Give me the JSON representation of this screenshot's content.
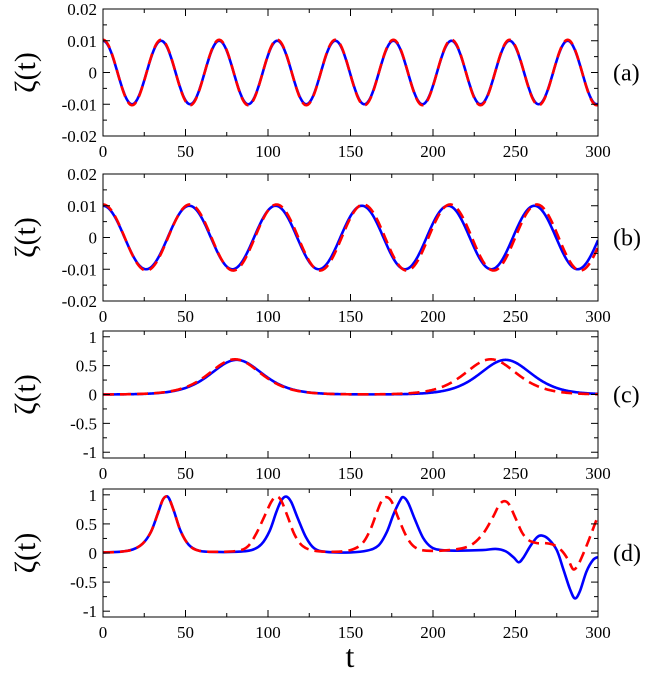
{
  "figure": {
    "xlabel": "t",
    "colors": {
      "series_solid": "#0000ff",
      "series_dashed": "#ff0000",
      "axes": "#000000"
    }
  },
  "chart_data": [
    {
      "type": "line",
      "panel_label": "(a)",
      "ylabel": "ζ(t)",
      "xlim": [
        0,
        300
      ],
      "ylim": [
        -0.02,
        0.02
      ],
      "xticks": [
        0,
        50,
        100,
        150,
        200,
        250,
        300
      ],
      "yticks": [
        -0.02,
        -0.01,
        0,
        0.01,
        0.02
      ],
      "ytick_labels": [
        "-0.02",
        "-0.01",
        "0",
        "0.01",
        "0.02"
      ],
      "grid": false,
      "series": [
        {
          "style": "solid",
          "color": "#0000ff",
          "kind": "cosine",
          "amplitude": 0.01,
          "period": 35.2,
          "phase_deg": 0
        },
        {
          "style": "dashed",
          "color": "#ff0000",
          "kind": "cosine",
          "amplitude": 0.0103,
          "period": 35.2,
          "phase_deg": 0
        }
      ]
    },
    {
      "type": "line",
      "panel_label": "(b)",
      "ylabel": "ζ(t)",
      "xlim": [
        0,
        300
      ],
      "ylim": [
        -0.02,
        0.02
      ],
      "xticks": [
        0,
        50,
        100,
        150,
        200,
        250,
        300
      ],
      "yticks": [
        -0.02,
        -0.01,
        0,
        0.01,
        0.02
      ],
      "ytick_labels": [
        "-0.02",
        "-0.01",
        "0",
        "0.01",
        "0.02"
      ],
      "grid": false,
      "series": [
        {
          "style": "solid",
          "color": "#0000ff",
          "kind": "cosine",
          "amplitude": 0.01,
          "period": 52.3,
          "phase_deg": 0
        },
        {
          "style": "dashed",
          "color": "#ff0000",
          "kind": "cosine",
          "amplitude": 0.0104,
          "period": 52.6,
          "phase_deg": 0
        }
      ]
    },
    {
      "type": "line",
      "panel_label": "(c)",
      "ylabel": "ζ(t)",
      "xlim": [
        0,
        300
      ],
      "ylim": [
        -1.1,
        1.1
      ],
      "xticks": [
        0,
        50,
        100,
        150,
        200,
        250,
        300
      ],
      "yticks": [
        -1,
        -0.5,
        0,
        0.5,
        1
      ],
      "ytick_labels": [
        "-1",
        "-0.5",
        "0",
        "0.5",
        "1"
      ],
      "grid": false,
      "series": [
        {
          "style": "solid",
          "color": "#0000ff",
          "kind": "pulses",
          "pulses": [
            {
              "center": 81,
              "height": 0.6,
              "width": 21
            },
            {
              "center": 244,
              "height": 0.6,
              "width": 21
            }
          ],
          "points": []
        },
        {
          "style": "dashed",
          "color": "#ff0000",
          "kind": "pulses",
          "pulses": [
            {
              "center": 80,
              "height": 0.61,
              "width": 21
            },
            {
              "center": 235,
              "height": 0.61,
              "width": 21
            }
          ],
          "points": []
        }
      ]
    },
    {
      "type": "line",
      "panel_label": "(d)",
      "ylabel": "ζ(t)",
      "xlim": [
        0,
        300
      ],
      "ylim": [
        -1.1,
        1.1
      ],
      "xticks": [
        0,
        50,
        100,
        150,
        200,
        250,
        300
      ],
      "yticks": [
        -1,
        -0.5,
        0,
        0.5,
        1
      ],
      "ytick_labels": [
        "-1",
        "-0.5",
        "0",
        "0.5",
        "1"
      ],
      "grid": false,
      "series": [
        {
          "style": "solid",
          "color": "#0000ff",
          "kind": "points",
          "points": [
            [
              0,
              0.01
            ],
            [
              10,
              0.02
            ],
            [
              18,
              0.06
            ],
            [
              24,
              0.16
            ],
            [
              29,
              0.36
            ],
            [
              33,
              0.66
            ],
            [
              36,
              0.9
            ],
            [
              38,
              0.97
            ],
            [
              40,
              0.94
            ],
            [
              43,
              0.72
            ],
            [
              47,
              0.38
            ],
            [
              52,
              0.14
            ],
            [
              58,
              0.04
            ],
            [
              65,
              0.02
            ],
            [
              80,
              0.02
            ],
            [
              90,
              0.05
            ],
            [
              96,
              0.15
            ],
            [
              101,
              0.38
            ],
            [
              105,
              0.7
            ],
            [
              108,
              0.9
            ],
            [
              111,
              0.97
            ],
            [
              114,
              0.88
            ],
            [
              118,
              0.6
            ],
            [
              123,
              0.27
            ],
            [
              128,
              0.08
            ],
            [
              135,
              0.02
            ],
            [
              150,
              0.01
            ],
            [
              160,
              0.04
            ],
            [
              167,
              0.13
            ],
            [
              172,
              0.36
            ],
            [
              176,
              0.66
            ],
            [
              180,
              0.9
            ],
            [
              182,
              0.96
            ],
            [
              185,
              0.86
            ],
            [
              189,
              0.58
            ],
            [
              194,
              0.26
            ],
            [
              199,
              0.1
            ],
            [
              205,
              0.05
            ],
            [
              215,
              0.04
            ],
            [
              230,
              0.05
            ],
            [
              238,
              0.07
            ],
            [
              244,
              0.03
            ],
            [
              249,
              -0.08
            ],
            [
              252,
              -0.16
            ],
            [
              255,
              -0.07
            ],
            [
              259,
              0.12
            ],
            [
              263,
              0.27
            ],
            [
              266,
              0.3
            ],
            [
              270,
              0.24
            ],
            [
              275,
              0.05
            ],
            [
              279,
              -0.28
            ],
            [
              283,
              -0.62
            ],
            [
              286,
              -0.78
            ],
            [
              289,
              -0.66
            ],
            [
              293,
              -0.32
            ],
            [
              297,
              -0.12
            ],
            [
              300,
              -0.07
            ]
          ]
        },
        {
          "style": "dashed",
          "color": "#ff0000",
          "kind": "points",
          "points": [
            [
              0,
              0.01
            ],
            [
              10,
              0.02
            ],
            [
              18,
              0.06
            ],
            [
              24,
              0.16
            ],
            [
              29,
              0.36
            ],
            [
              33,
              0.66
            ],
            [
              36,
              0.9
            ],
            [
              38,
              0.97
            ],
            [
              40,
              0.94
            ],
            [
              43,
              0.72
            ],
            [
              47,
              0.38
            ],
            [
              52,
              0.14
            ],
            [
              58,
              0.04
            ],
            [
              70,
              0.02
            ],
            [
              82,
              0.04
            ],
            [
              88,
              0.12
            ],
            [
              93,
              0.34
            ],
            [
              98,
              0.64
            ],
            [
              102,
              0.88
            ],
            [
              105,
              0.97
            ],
            [
              108,
              0.9
            ],
            [
              112,
              0.62
            ],
            [
              116,
              0.32
            ],
            [
              121,
              0.12
            ],
            [
              128,
              0.04
            ],
            [
              140,
              0.02
            ],
            [
              150,
              0.05
            ],
            [
              157,
              0.16
            ],
            [
              162,
              0.4
            ],
            [
              166,
              0.7
            ],
            [
              169,
              0.9
            ],
            [
              172,
              0.96
            ],
            [
              175,
              0.88
            ],
            [
              179,
              0.6
            ],
            [
              184,
              0.28
            ],
            [
              189,
              0.1
            ],
            [
              196,
              0.04
            ],
            [
              210,
              0.05
            ],
            [
              222,
              0.12
            ],
            [
              230,
              0.32
            ],
            [
              236,
              0.6
            ],
            [
              240,
              0.82
            ],
            [
              243,
              0.89
            ],
            [
              246,
              0.84
            ],
            [
              250,
              0.6
            ],
            [
              254,
              0.35
            ],
            [
              258,
              0.22
            ],
            [
              263,
              0.17
            ],
            [
              268,
              0.17
            ],
            [
              273,
              0.14
            ],
            [
              278,
              0.04
            ],
            [
              282,
              -0.12
            ],
            [
              285,
              -0.28
            ],
            [
              288,
              -0.2
            ],
            [
              292,
              0.05
            ],
            [
              296,
              0.34
            ],
            [
              300,
              0.64
            ]
          ]
        }
      ]
    }
  ]
}
